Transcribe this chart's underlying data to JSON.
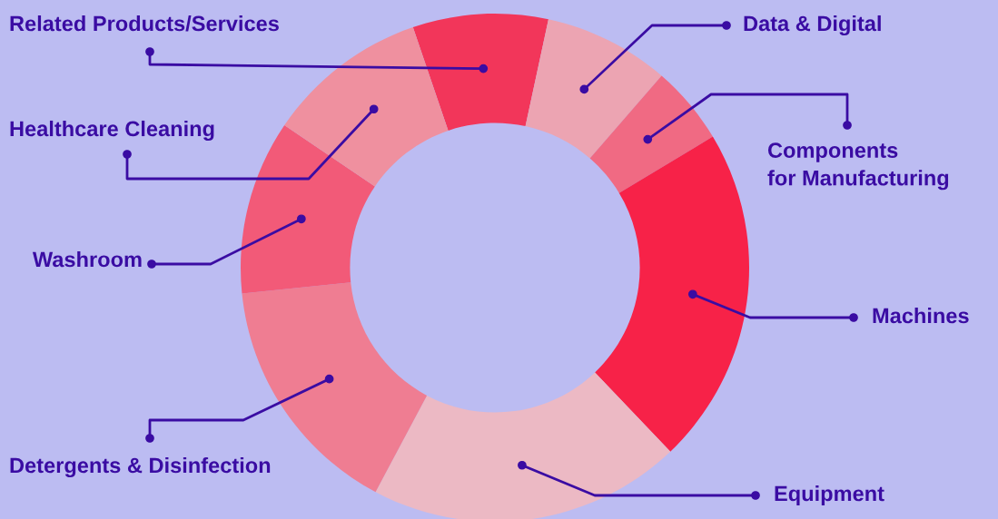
{
  "chart_data": {
    "type": "donut",
    "categories": [
      "Related Products/Services",
      "Data & Digital",
      "Components\nfor Manufacturing",
      "Machines",
      "Equipment",
      "Detergents & Disinfection",
      "Washroom",
      "Healthcare Cleaning"
    ],
    "values": [
      8.6,
      8.0,
      5.0,
      21.5,
      19.9,
      15.6,
      11.1,
      10.3
    ],
    "colors": [
      "#f2365a",
      "#eca4b2",
      "#f06a83",
      "#f72248",
      "#ecb9c4",
      "#ef7d92",
      "#f25a78",
      "#ef909f"
    ],
    "legend": false
  }
}
